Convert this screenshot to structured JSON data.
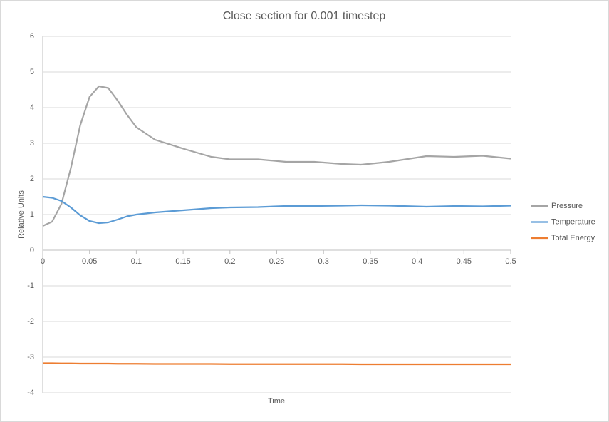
{
  "chart_data": {
    "type": "line",
    "title": "Close section for 0.001 timestep",
    "x_label": "Time",
    "y_label": "Relative Units",
    "x": [
      0,
      0.01,
      0.02,
      0.03,
      0.04,
      0.05,
      0.06,
      0.07,
      0.08,
      0.09,
      0.1,
      0.12,
      0.15,
      0.18,
      0.2,
      0.23,
      0.26,
      0.29,
      0.32,
      0.34,
      0.37,
      0.41,
      0.44,
      0.47,
      0.5
    ],
    "series": [
      {
        "name": "Pressure",
        "color": "#a5a5a5",
        "values": [
          0.68,
          0.8,
          1.3,
          2.3,
          3.5,
          4.3,
          4.6,
          4.55,
          4.2,
          3.8,
          3.45,
          3.1,
          2.85,
          2.62,
          2.55,
          2.55,
          2.48,
          2.48,
          2.42,
          2.4,
          2.48,
          2.64,
          2.62,
          2.65,
          2.57
        ]
      },
      {
        "name": "Temperature",
        "color": "#5b9bd5",
        "values": [
          1.5,
          1.47,
          1.38,
          1.2,
          0.98,
          0.82,
          0.76,
          0.78,
          0.86,
          0.95,
          1.0,
          1.06,
          1.12,
          1.18,
          1.2,
          1.21,
          1.24,
          1.24,
          1.25,
          1.26,
          1.25,
          1.22,
          1.24,
          1.23,
          1.25
        ]
      },
      {
        "name": "Total Energy",
        "color": "#ed7d31",
        "values": [
          -3.17,
          -3.17,
          -3.175,
          -3.175,
          -3.18,
          -3.18,
          -3.18,
          -3.18,
          -3.185,
          -3.185,
          -3.185,
          -3.19,
          -3.19,
          -3.19,
          -3.195,
          -3.195,
          -3.195,
          -3.195,
          -3.195,
          -3.2,
          -3.2,
          -3.2,
          -3.2,
          -3.2,
          -3.2
        ]
      }
    ],
    "xlim": [
      0,
      0.5
    ],
    "xticks": [
      0,
      0.05,
      0.1,
      0.15,
      0.2,
      0.25,
      0.3,
      0.35,
      0.4,
      0.45,
      0.5
    ],
    "ylim": [
      -4,
      6
    ],
    "yticks": [
      -4,
      -3,
      -2,
      -1,
      0,
      1,
      2,
      3,
      4,
      5,
      6
    ],
    "grid": true,
    "legend": "right"
  }
}
